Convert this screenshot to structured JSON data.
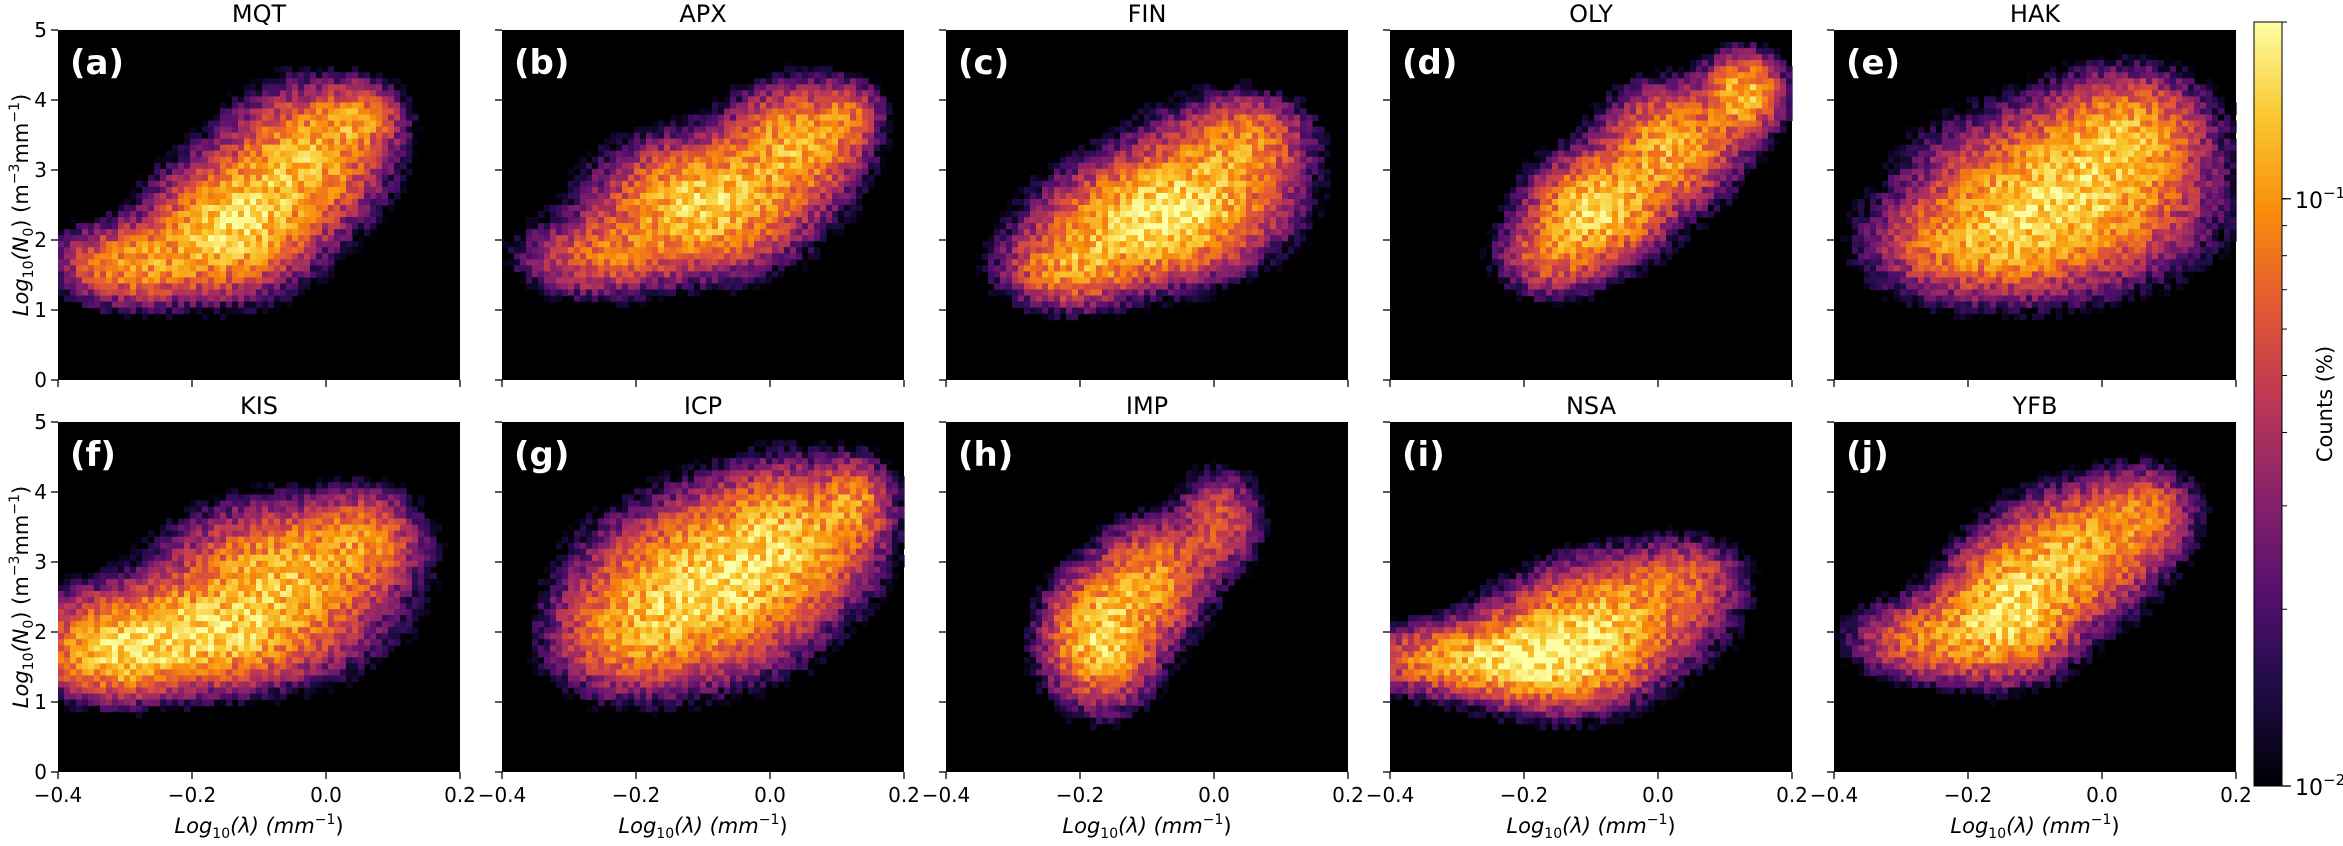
{
  "chart_data": {
    "type": "heatmap",
    "x_label": {
      "pre": "Log",
      "sub": "10",
      "mid": "(λ) (mm",
      "sup": "−1",
      "post": ")"
    },
    "y_label": {
      "pre": "Log",
      "sub": "10",
      "mid": "(N",
      "sub2": "0",
      "mid2": ") (m",
      "sup": "−3",
      "mid3": "mm",
      "sup2": "−1",
      "post": ")"
    },
    "xlim": [
      -0.4,
      0.2
    ],
    "ylim": [
      0,
      5
    ],
    "x_ticks": [
      {
        "value": -0.4,
        "label": "−0.4"
      },
      {
        "value": -0.2,
        "label": "−0.2"
      },
      {
        "value": 0.0,
        "label": "0.0"
      },
      {
        "value": 0.2,
        "label": "0.2"
      }
    ],
    "y_ticks": [
      {
        "value": 0,
        "label": "0"
      },
      {
        "value": 1,
        "label": "1"
      },
      {
        "value": 2,
        "label": "2"
      },
      {
        "value": 3,
        "label": "3"
      },
      {
        "value": 4,
        "label": "4"
      },
      {
        "value": 5,
        "label": "5"
      }
    ],
    "colorbar": {
      "label": "Counts (%)",
      "scale": "log",
      "range": [
        0.01,
        0.2
      ],
      "ticks": [
        {
          "value": 0.1,
          "base": "10",
          "exp": "−1"
        },
        {
          "value": 0.01,
          "base": "10",
          "exp": "−2"
        }
      ],
      "colormap": "inferno"
    },
    "panels": [
      {
        "site": "MQT",
        "label": "(a)",
        "blobs": [
          {
            "x": -0.14,
            "y": 2.2,
            "sx": 0.07,
            "sy": 0.55,
            "w": 1.0
          },
          {
            "x": -0.03,
            "y": 3.15,
            "sx": 0.07,
            "sy": 0.6,
            "w": 0.8
          },
          {
            "x": -0.29,
            "y": 1.65,
            "sx": 0.07,
            "sy": 0.35,
            "w": 0.65
          },
          {
            "x": 0.05,
            "y": 3.75,
            "sx": 0.04,
            "sy": 0.3,
            "w": 0.5
          }
        ]
      },
      {
        "site": "APX",
        "label": "(b)",
        "blobs": [
          {
            "x": -0.1,
            "y": 2.5,
            "sx": 0.09,
            "sy": 0.55,
            "w": 1.0
          },
          {
            "x": 0.04,
            "y": 3.4,
            "sx": 0.06,
            "sy": 0.5,
            "w": 0.75
          },
          {
            "x": -0.26,
            "y": 1.75,
            "sx": 0.07,
            "sy": 0.35,
            "w": 0.45
          },
          {
            "x": 0.12,
            "y": 3.8,
            "sx": 0.03,
            "sy": 0.3,
            "w": 0.35
          }
        ]
      },
      {
        "site": "FIN",
        "label": "(c)",
        "blobs": [
          {
            "x": -0.1,
            "y": 2.25,
            "sx": 0.09,
            "sy": 0.5,
            "w": 1.0
          },
          {
            "x": 0.0,
            "y": 2.9,
            "sx": 0.08,
            "sy": 0.6,
            "w": 0.6
          },
          {
            "x": -0.22,
            "y": 1.6,
            "sx": 0.06,
            "sy": 0.35,
            "w": 0.6
          },
          {
            "x": 0.06,
            "y": 3.5,
            "sx": 0.05,
            "sy": 0.35,
            "w": 0.35
          }
        ]
      },
      {
        "site": "OLY",
        "label": "(d)",
        "blobs": [
          {
            "x": -0.09,
            "y": 2.45,
            "sx": 0.06,
            "sy": 0.45,
            "w": 1.0
          },
          {
            "x": 0.02,
            "y": 3.35,
            "sx": 0.06,
            "sy": 0.5,
            "w": 0.8
          },
          {
            "x": 0.13,
            "y": 4.1,
            "sx": 0.035,
            "sy": 0.35,
            "w": 0.85
          },
          {
            "x": -0.16,
            "y": 1.75,
            "sx": 0.05,
            "sy": 0.35,
            "w": 0.45
          }
        ]
      },
      {
        "site": "HAK",
        "label": "(e)",
        "blobs": [
          {
            "x": -0.06,
            "y": 2.6,
            "sx": 0.12,
            "sy": 0.7,
            "w": 1.0
          },
          {
            "x": 0.04,
            "y": 3.6,
            "sx": 0.07,
            "sy": 0.5,
            "w": 0.6
          },
          {
            "x": -0.2,
            "y": 1.9,
            "sx": 0.09,
            "sy": 0.45,
            "w": 0.5
          }
        ]
      },
      {
        "site": "KIS",
        "label": "(f)",
        "blobs": [
          {
            "x": -0.2,
            "y": 1.95,
            "sx": 0.13,
            "sy": 0.45,
            "w": 1.0
          },
          {
            "x": -0.06,
            "y": 2.9,
            "sx": 0.1,
            "sy": 0.55,
            "w": 0.8
          },
          {
            "x": -0.32,
            "y": 1.6,
            "sx": 0.06,
            "sy": 0.35,
            "w": 0.55
          },
          {
            "x": 0.06,
            "y": 3.4,
            "sx": 0.05,
            "sy": 0.4,
            "w": 0.4
          }
        ]
      },
      {
        "site": "ICP",
        "label": "(g)",
        "blobs": [
          {
            "x": -0.1,
            "y": 2.6,
            "sx": 0.1,
            "sy": 0.7,
            "w": 1.0
          },
          {
            "x": 0.03,
            "y": 3.4,
            "sx": 0.08,
            "sy": 0.6,
            "w": 0.75
          },
          {
            "x": -0.22,
            "y": 1.9,
            "sx": 0.07,
            "sy": 0.5,
            "w": 0.45
          },
          {
            "x": 0.13,
            "y": 3.9,
            "sx": 0.03,
            "sy": 0.35,
            "w": 0.45
          }
        ]
      },
      {
        "site": "IMP",
        "label": "(h)",
        "blobs": [
          {
            "x": -0.17,
            "y": 1.9,
            "sx": 0.05,
            "sy": 0.55,
            "w": 1.0
          },
          {
            "x": -0.09,
            "y": 2.75,
            "sx": 0.05,
            "sy": 0.5,
            "w": 0.65
          },
          {
            "x": 0.01,
            "y": 3.6,
            "sx": 0.04,
            "sy": 0.45,
            "w": 0.4
          }
        ]
      },
      {
        "site": "NSA",
        "label": "(i)",
        "blobs": [
          {
            "x": -0.15,
            "y": 1.65,
            "sx": 0.08,
            "sy": 0.45,
            "w": 1.0
          },
          {
            "x": -0.06,
            "y": 2.3,
            "sx": 0.09,
            "sy": 0.5,
            "w": 0.65
          },
          {
            "x": -0.3,
            "y": 1.6,
            "sx": 0.09,
            "sy": 0.3,
            "w": 0.7
          },
          {
            "x": 0.05,
            "y": 2.8,
            "sx": 0.05,
            "sy": 0.35,
            "w": 0.3
          }
        ]
      },
      {
        "site": "YFB",
        "label": "(j)",
        "blobs": [
          {
            "x": -0.14,
            "y": 2.3,
            "sx": 0.06,
            "sy": 0.55,
            "w": 1.0
          },
          {
            "x": -0.04,
            "y": 3.1,
            "sx": 0.07,
            "sy": 0.55,
            "w": 0.75
          },
          {
            "x": -0.26,
            "y": 1.9,
            "sx": 0.07,
            "sy": 0.35,
            "w": 0.55
          },
          {
            "x": 0.06,
            "y": 3.7,
            "sx": 0.05,
            "sy": 0.4,
            "w": 0.5
          }
        ]
      }
    ]
  }
}
